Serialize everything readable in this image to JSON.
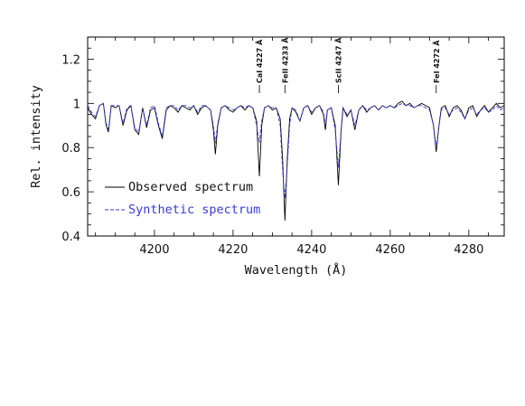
{
  "chart_data": {
    "type": "line",
    "xlabel": "Wavelength (Å)",
    "ylabel": "Rel. intensity",
    "xlim": [
      4183,
      4289
    ],
    "ylim": [
      0.4,
      1.3
    ],
    "x_ticks": [
      4200,
      4220,
      4240,
      4260,
      4280
    ],
    "y_ticks": [
      0.4,
      0.6,
      0.8,
      1.0,
      1.2
    ],
    "y_tick_labels": [
      "0.4",
      "0.6",
      "0.8",
      "1",
      "1.2"
    ],
    "grid": false,
    "legend_position": "bottom-left",
    "series": [
      {
        "name": "Observed spectrum",
        "color": "#000000",
        "style": "solid",
        "points": [
          [
            4183,
            0.98
          ],
          [
            4184,
            0.95
          ],
          [
            4185,
            0.93
          ],
          [
            4186,
            0.99
          ],
          [
            4187,
            1.0
          ],
          [
            4187.7,
            0.9
          ],
          [
            4188.3,
            0.87
          ],
          [
            4189,
            0.99
          ],
          [
            4190,
            0.98
          ],
          [
            4191,
            0.99
          ],
          [
            4192,
            0.9
          ],
          [
            4193,
            0.97
          ],
          [
            4194,
            0.99
          ],
          [
            4195,
            0.88
          ],
          [
            4196,
            0.86
          ],
          [
            4197,
            0.98
          ],
          [
            4198,
            0.89
          ],
          [
            4199,
            0.97
          ],
          [
            4200,
            0.98
          ],
          [
            4201,
            0.9
          ],
          [
            4202,
            0.84
          ],
          [
            4203,
            0.97
          ],
          [
            4204,
            0.99
          ],
          [
            4205,
            0.98
          ],
          [
            4206,
            0.96
          ],
          [
            4207,
            0.99
          ],
          [
            4208,
            0.98
          ],
          [
            4209,
            0.97
          ],
          [
            4210,
            0.99
          ],
          [
            4211,
            0.95
          ],
          [
            4212,
            0.98
          ],
          [
            4213,
            0.99
          ],
          [
            4214.3,
            0.97
          ],
          [
            4215,
            0.88
          ],
          [
            4215.5,
            0.77
          ],
          [
            4216.1,
            0.9
          ],
          [
            4217,
            0.98
          ],
          [
            4218,
            0.99
          ],
          [
            4219,
            0.97
          ],
          [
            4220,
            0.96
          ],
          [
            4221,
            0.98
          ],
          [
            4222,
            0.99
          ],
          [
            4223,
            0.97
          ],
          [
            4224,
            0.99
          ],
          [
            4225,
            0.98
          ],
          [
            4226,
            0.92
          ],
          [
            4226.7,
            0.67
          ],
          [
            4227.3,
            0.9
          ],
          [
            4228,
            0.98
          ],
          [
            4229,
            0.99
          ],
          [
            4230,
            0.97
          ],
          [
            4231,
            0.98
          ],
          [
            4232,
            0.93
          ],
          [
            4232.6,
            0.75
          ],
          [
            4233.2,
            0.47
          ],
          [
            4233.8,
            0.75
          ],
          [
            4234.4,
            0.93
          ],
          [
            4235,
            0.98
          ],
          [
            4236,
            0.96
          ],
          [
            4237,
            0.92
          ],
          [
            4238,
            0.98
          ],
          [
            4239,
            0.99
          ],
          [
            4240,
            0.95
          ],
          [
            4241,
            0.98
          ],
          [
            4242,
            0.99
          ],
          [
            4243,
            0.95
          ],
          [
            4243.5,
            0.88
          ],
          [
            4244,
            0.97
          ],
          [
            4245,
            0.98
          ],
          [
            4246,
            0.9
          ],
          [
            4246.8,
            0.63
          ],
          [
            4247.5,
            0.88
          ],
          [
            4248,
            0.98
          ],
          [
            4249,
            0.94
          ],
          [
            4250,
            0.97
          ],
          [
            4251,
            0.88
          ],
          [
            4252,
            0.97
          ],
          [
            4253,
            0.99
          ],
          [
            4254,
            0.96
          ],
          [
            4255,
            0.98
          ],
          [
            4256,
            0.99
          ],
          [
            4257,
            0.97
          ],
          [
            4258,
            0.99
          ],
          [
            4259,
            0.98
          ],
          [
            4260,
            0.99
          ],
          [
            4261,
            0.98
          ],
          [
            4262,
            1.0
          ],
          [
            4263,
            1.01
          ],
          [
            4264,
            0.99
          ],
          [
            4265,
            1.0
          ],
          [
            4266,
            0.98
          ],
          [
            4267,
            0.99
          ],
          [
            4268,
            1.0
          ],
          [
            4269,
            0.99
          ],
          [
            4270,
            0.98
          ],
          [
            4271,
            0.9
          ],
          [
            4271.7,
            0.78
          ],
          [
            4272.4,
            0.9
          ],
          [
            4273,
            0.98
          ],
          [
            4274,
            0.99
          ],
          [
            4275,
            0.94
          ],
          [
            4276,
            0.98
          ],
          [
            4277,
            0.99
          ],
          [
            4278,
            0.97
          ],
          [
            4279,
            0.93
          ],
          [
            4280,
            0.98
          ],
          [
            4281,
            0.99
          ],
          [
            4282,
            0.94
          ],
          [
            4283,
            0.97
          ],
          [
            4284,
            0.99
          ],
          [
            4285,
            0.96
          ],
          [
            4286,
            0.98
          ],
          [
            4287,
            1.0
          ],
          [
            4288,
            0.98
          ],
          [
            4289,
            0.99
          ]
        ]
      },
      {
        "name": "Synthetic spectrum",
        "color": "#3a3ad8",
        "style": "dashed",
        "points": [
          [
            4183,
            0.99
          ],
          [
            4184,
            0.96
          ],
          [
            4185,
            0.94
          ],
          [
            4186,
            0.99
          ],
          [
            4187,
            1.0
          ],
          [
            4187.7,
            0.91
          ],
          [
            4188.3,
            0.88
          ],
          [
            4189,
            0.99
          ],
          [
            4190,
            0.99
          ],
          [
            4191,
            0.99
          ],
          [
            4192,
            0.91
          ],
          [
            4193,
            0.98
          ],
          [
            4194,
            0.99
          ],
          [
            4195,
            0.89
          ],
          [
            4196,
            0.87
          ],
          [
            4197,
            0.98
          ],
          [
            4198,
            0.9
          ],
          [
            4199,
            0.98
          ],
          [
            4200,
            0.99
          ],
          [
            4201,
            0.91
          ],
          [
            4202,
            0.85
          ],
          [
            4203,
            0.98
          ],
          [
            4204,
            0.99
          ],
          [
            4205,
            0.99
          ],
          [
            4206,
            0.97
          ],
          [
            4207,
            0.99
          ],
          [
            4208,
            0.99
          ],
          [
            4209,
            0.98
          ],
          [
            4210,
            0.99
          ],
          [
            4211,
            0.96
          ],
          [
            4212,
            0.99
          ],
          [
            4213,
            0.99
          ],
          [
            4214.3,
            0.97
          ],
          [
            4215,
            0.9
          ],
          [
            4215.5,
            0.82
          ],
          [
            4216.1,
            0.91
          ],
          [
            4217,
            0.98
          ],
          [
            4218,
            0.99
          ],
          [
            4219,
            0.98
          ],
          [
            4220,
            0.97
          ],
          [
            4221,
            0.98
          ],
          [
            4222,
            0.99
          ],
          [
            4223,
            0.98
          ],
          [
            4224,
            0.99
          ],
          [
            4225,
            0.98
          ],
          [
            4226,
            0.9
          ],
          [
            4226.7,
            0.82
          ],
          [
            4227.3,
            0.92
          ],
          [
            4228,
            0.98
          ],
          [
            4229,
            0.99
          ],
          [
            4230,
            0.98
          ],
          [
            4231,
            0.98
          ],
          [
            4232,
            0.9
          ],
          [
            4232.6,
            0.7
          ],
          [
            4233.2,
            0.57
          ],
          [
            4233.8,
            0.72
          ],
          [
            4234.4,
            0.9
          ],
          [
            4235,
            0.98
          ],
          [
            4236,
            0.97
          ],
          [
            4237,
            0.92
          ],
          [
            4238,
            0.98
          ],
          [
            4239,
            0.99
          ],
          [
            4240,
            0.96
          ],
          [
            4241,
            0.98
          ],
          [
            4242,
            0.99
          ],
          [
            4243,
            0.96
          ],
          [
            4243.5,
            0.9
          ],
          [
            4244,
            0.97
          ],
          [
            4245,
            0.98
          ],
          [
            4246,
            0.88
          ],
          [
            4246.8,
            0.71
          ],
          [
            4247.5,
            0.88
          ],
          [
            4248,
            0.98
          ],
          [
            4249,
            0.95
          ],
          [
            4250,
            0.97
          ],
          [
            4251,
            0.9
          ],
          [
            4252,
            0.97
          ],
          [
            4253,
            0.99
          ],
          [
            4254,
            0.97
          ],
          [
            4255,
            0.98
          ],
          [
            4256,
            0.99
          ],
          [
            4257,
            0.97
          ],
          [
            4258,
            0.99
          ],
          [
            4259,
            0.98
          ],
          [
            4260,
            0.99
          ],
          [
            4261,
            0.98
          ],
          [
            4262,
            0.99
          ],
          [
            4263,
            1.0
          ],
          [
            4264,
            0.99
          ],
          [
            4265,
            0.99
          ],
          [
            4266,
            0.98
          ],
          [
            4267,
            0.99
          ],
          [
            4268,
            0.99
          ],
          [
            4269,
            0.98
          ],
          [
            4270,
            0.97
          ],
          [
            4271,
            0.9
          ],
          [
            4271.7,
            0.8
          ],
          [
            4272.4,
            0.9
          ],
          [
            4273,
            0.97
          ],
          [
            4274,
            0.98
          ],
          [
            4275,
            0.95
          ],
          [
            4276,
            0.97
          ],
          [
            4277,
            0.98
          ],
          [
            4278,
            0.96
          ],
          [
            4279,
            0.93
          ],
          [
            4280,
            0.97
          ],
          [
            4281,
            0.98
          ],
          [
            4282,
            0.95
          ],
          [
            4283,
            0.97
          ],
          [
            4284,
            0.98
          ],
          [
            4285,
            0.96
          ],
          [
            4286,
            0.97
          ],
          [
            4287,
            0.99
          ],
          [
            4288,
            0.97
          ],
          [
            4289,
            0.98
          ]
        ]
      }
    ],
    "line_labels": [
      {
        "text": "CaI 4227 Å",
        "x": 4226.7
      },
      {
        "text": "FeII 4233 Å",
        "x": 4233.2
      },
      {
        "text": "ScII 4247 Å",
        "x": 4246.8
      },
      {
        "text": "FeI 4272 Å",
        "x": 4271.7
      }
    ]
  }
}
